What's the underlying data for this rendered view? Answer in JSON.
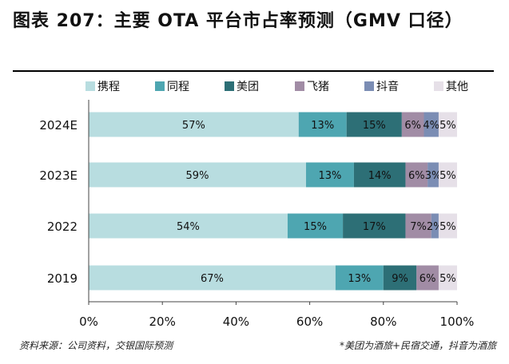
{
  "title": "图表 207：主要 OTA 平台市占率预测（GMV 口径）",
  "source": "资料来源：公司资料，交银国际预测",
  "note": "*美团为酒旅+民宿交通，抖音为酒旅",
  "chart_data": {
    "type": "bar",
    "orientation": "horizontal",
    "stacked": true,
    "categories": [
      "2024E",
      "2023E",
      "2022",
      "2019"
    ],
    "series": [
      {
        "name": "携程",
        "color": "#b8dde0",
        "values": [
          57,
          59,
          54,
          67
        ],
        "labels": [
          "57%",
          "59%",
          "54%",
          "67%"
        ]
      },
      {
        "name": "同程",
        "color": "#4ea6b1",
        "values": [
          13,
          13,
          15,
          13
        ],
        "labels": [
          "13%",
          "13%",
          "15%",
          "13%"
        ]
      },
      {
        "name": "美团",
        "color": "#2d6f76",
        "values": [
          15,
          14,
          17,
          9
        ],
        "labels": [
          "15%",
          "14%",
          "17%",
          "9%"
        ]
      },
      {
        "name": "飞猪",
        "color": "#a18ca5",
        "values": [
          6,
          6,
          7,
          6
        ],
        "labels": [
          "6%",
          "6%",
          "7%",
          "6%"
        ]
      },
      {
        "name": "抖音",
        "color": "#7b8db4",
        "values": [
          4,
          3,
          2,
          0
        ],
        "labels": [
          "4%",
          "3%",
          "2%",
          ""
        ]
      },
      {
        "name": "其他",
        "color": "#e6e0e8",
        "values": [
          5,
          5,
          5,
          5
        ],
        "labels": [
          "5%",
          "5%",
          "5%",
          "5%"
        ]
      }
    ],
    "xlim": [
      0,
      100
    ],
    "x_ticks": [
      "0%",
      "20%",
      "40%",
      "60%",
      "80%",
      "100%"
    ],
    "legend_position": "top",
    "grid": false
  }
}
